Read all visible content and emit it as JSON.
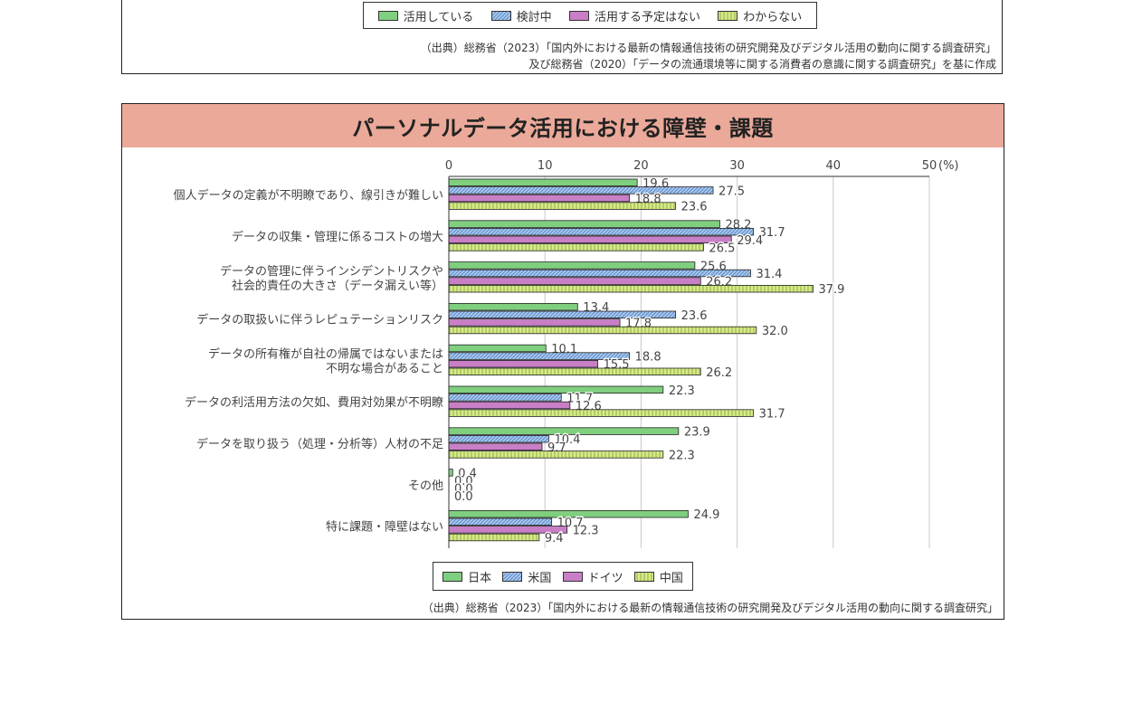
{
  "top_section": {
    "legend": [
      {
        "label": "活用している",
        "color": "#7fcf7f",
        "pattern": "solid"
      },
      {
        "label": "検討中",
        "color": "#a9c8ee",
        "pattern": "hatch"
      },
      {
        "label": "活用する予定はない",
        "color": "#c97fc6",
        "pattern": "solid"
      },
      {
        "label": "わからない",
        "color": "#d6ea8a",
        "pattern": "vlines"
      }
    ],
    "source_line1": "（出典）総務省（2023）「国内外における最新の情報通信技術の研究開発及びデジタル活用の動向に関する調査研究」",
    "source_line2": "及び総務省（2020）「データの流通環境等に関する消費者の意識に関する調査研究」を基に作成"
  },
  "main": {
    "source": "（出典）総務省（2023）「国内外における最新の情報通信技術の研究開発及びデジタル活用の動向に関する調査研究」"
  },
  "chart_data": {
    "type": "bar",
    "orientation": "horizontal",
    "title": "パーソナルデータ活用における障壁・課題",
    "unit": "(%)",
    "xlim": [
      0,
      50
    ],
    "ticks": [
      0,
      10,
      20,
      30,
      40,
      50
    ],
    "grid": true,
    "legend_position": "bottom",
    "categories": [
      [
        "個人データの定義が不明瞭であり、線引きが難しい"
      ],
      [
        "データの収集・管理に係るコストの増大"
      ],
      [
        "データの管理に伴うインシデントリスクや",
        "社会的責任の大きさ（データ漏えい等）"
      ],
      [
        "データの取扱いに伴うレピュテーションリスク"
      ],
      [
        "データの所有権が自社の帰属ではないまたは",
        "不明な場合があること"
      ],
      [
        "データの利活用方法の欠如、費用対効果が不明瞭"
      ],
      [
        "データを取り扱う（処理・分析等）人材の不足"
      ],
      [
        "その他"
      ],
      [
        "特に課題・障壁はない"
      ]
    ],
    "series": [
      {
        "name": "日本",
        "color": "#7fcf7f",
        "pattern": "solid",
        "values": [
          19.6,
          28.2,
          25.6,
          13.4,
          10.1,
          22.3,
          23.9,
          0.4,
          24.9
        ]
      },
      {
        "name": "米国",
        "color": "#a9c8ee",
        "pattern": "hatch",
        "values": [
          27.5,
          31.7,
          31.4,
          23.6,
          18.8,
          11.7,
          10.4,
          0.0,
          10.7
        ]
      },
      {
        "name": "ドイツ",
        "color": "#c97fc6",
        "pattern": "solid",
        "values": [
          18.8,
          29.4,
          26.2,
          17.8,
          15.5,
          12.6,
          9.7,
          0.0,
          12.3
        ]
      },
      {
        "name": "中国",
        "color": "#d6ea8a",
        "pattern": "vlines",
        "values": [
          23.6,
          26.5,
          37.9,
          32.0,
          26.2,
          31.7,
          22.3,
          0.0,
          9.4
        ]
      }
    ]
  }
}
